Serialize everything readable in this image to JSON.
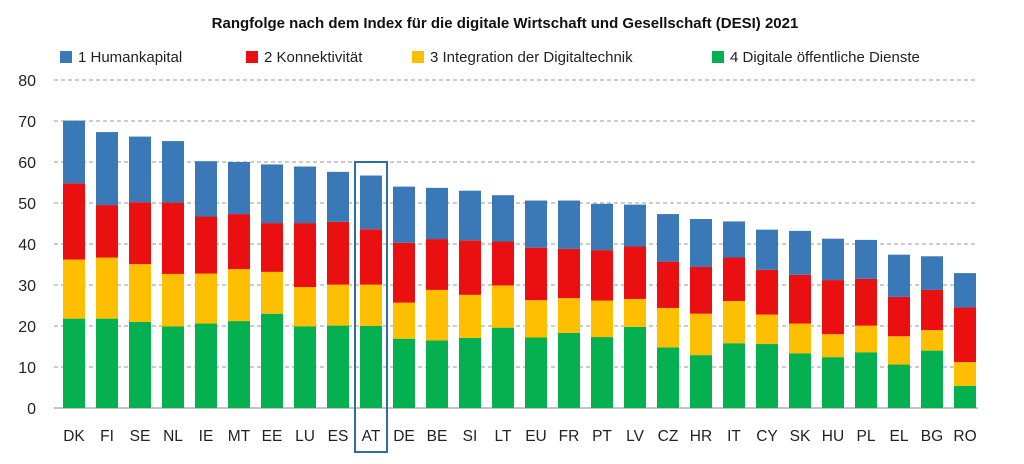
{
  "chart_data": {
    "type": "bar",
    "stacked": true,
    "title": "Rangfolge nach dem Index für die digitale Wirtschaft und Gesellschaft (DESI) 2021",
    "legend_position": "top",
    "grid": true,
    "ylim": [
      0,
      80
    ],
    "yticks": [
      0,
      10,
      20,
      30,
      40,
      50,
      60,
      70,
      80
    ],
    "highlighted_category": "AT",
    "colors": {
      "humankapital": "#3a78b7",
      "konnektivitaet": "#ea0f10",
      "integration": "#fdbf00",
      "oeffentliche": "#05b050",
      "highlight_box": "#2e6da6",
      "grid": "#9a9a9a"
    },
    "categories": [
      "DK",
      "FI",
      "SE",
      "NL",
      "IE",
      "MT",
      "EE",
      "LU",
      "ES",
      "AT",
      "DE",
      "BE",
      "SI",
      "LT",
      "EU",
      "FR",
      "PT",
      "LV",
      "CZ",
      "HR",
      "IT",
      "CY",
      "SK",
      "HU",
      "PL",
      "EL",
      "BG",
      "RO"
    ],
    "series": [
      {
        "name": "4 Digitale öffentliche Dienste",
        "key": "oeffentliche",
        "values": [
          21.8,
          21.8,
          21.0,
          19.9,
          20.6,
          21.2,
          23.0,
          19.9,
          20.1,
          20.0,
          16.9,
          16.5,
          17.1,
          19.6,
          17.2,
          18.3,
          17.3,
          19.8,
          14.8,
          12.9,
          15.8,
          15.6,
          13.3,
          12.4,
          13.6,
          10.6,
          14.0,
          5.4
        ]
      },
      {
        "name": "3 Integration der Digitaltechnik",
        "key": "integration",
        "values": [
          14.4,
          14.9,
          14.1,
          12.8,
          12.2,
          12.7,
          10.2,
          9.6,
          10.0,
          10.1,
          8.8,
          12.3,
          10.5,
          10.3,
          9.1,
          8.5,
          8.9,
          6.8,
          9.6,
          10.1,
          10.3,
          7.2,
          7.3,
          5.6,
          6.5,
          6.9,
          5.0,
          5.8
        ]
      },
      {
        "name": "2 Konnektivität",
        "key": "konnektivitaet",
        "values": [
          18.6,
          12.8,
          15.1,
          17.4,
          13.9,
          13.4,
          11.9,
          15.6,
          15.3,
          13.5,
          14.6,
          12.4,
          13.3,
          10.7,
          12.8,
          12.0,
          12.3,
          12.8,
          11.3,
          11.4,
          10.6,
          10.9,
          11.9,
          13.2,
          11.4,
          9.6,
          9.8,
          13.3
        ]
      },
      {
        "name": "1 Humankapital",
        "key": "humankapital",
        "values": [
          15.3,
          17.8,
          16.0,
          15.0,
          13.5,
          12.7,
          14.3,
          13.8,
          12.2,
          13.1,
          13.7,
          12.5,
          12.1,
          11.3,
          11.5,
          11.8,
          11.3,
          10.2,
          11.6,
          11.7,
          8.8,
          9.8,
          10.7,
          10.1,
          9.5,
          10.3,
          8.2,
          8.4
        ]
      }
    ],
    "legend_order": [
      "humankapital",
      "konnektivitaet",
      "integration",
      "oeffentliche"
    ]
  }
}
